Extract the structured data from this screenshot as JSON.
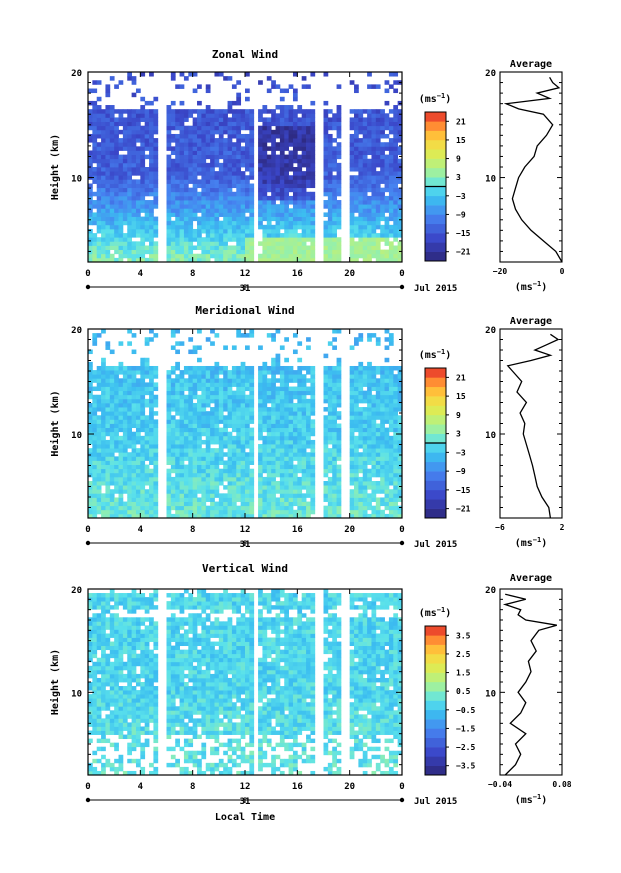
{
  "chart_data": [
    {
      "type": "heatmap",
      "title": "Zonal Wind",
      "xlabel": "",
      "ylabel": "Height (km)",
      "xlim": [
        0,
        24
      ],
      "ylim": [
        2,
        20
      ],
      "xticks": [
        "0",
        "4",
        "8",
        "12",
        "16",
        "20",
        "0"
      ],
      "yticks": [
        "10",
        "20"
      ],
      "day_label": "31",
      "month_label": "Jul 2015",
      "colorbar": {
        "unit": "(ms",
        "unit_sup": "−1",
        "unit_close": ")",
        "ticks": [
          "21",
          "15",
          "9",
          "3",
          "−3",
          "−9",
          "−15",
          "−21"
        ],
        "zero_line": true
      },
      "field": {
        "base": -12,
        "surface": 3,
        "top_shift": -4,
        "gaps": [
          5.6,
          12.8,
          17.6,
          19.6
        ],
        "ceiling": 16.5
      },
      "profile": {
        "title": "Average",
        "xlim": [
          -20,
          0
        ],
        "xticks": [
          "−20",
          "0"
        ],
        "xlabel": "(ms",
        "xlabel_sup": "−1",
        "xlabel_close": ")",
        "yticks": [
          "10",
          "20"
        ],
        "heights": [
          2,
          3,
          4,
          5,
          6,
          7,
          8,
          9,
          10,
          11,
          12,
          13,
          14,
          15,
          16,
          16.5,
          17,
          17.5,
          18,
          18.5,
          19,
          19.5
        ],
        "values": [
          0,
          -2,
          -6,
          -10,
          -13,
          -15,
          -16,
          -15,
          -14,
          -12,
          -9,
          -8,
          -5,
          -3,
          -6,
          -14,
          -18,
          -4,
          -8,
          -1,
          -3,
          -4
        ]
      }
    },
    {
      "type": "heatmap",
      "title": "Meridional Wind",
      "xlabel": "",
      "ylabel": "Height (km)",
      "xlim": [
        0,
        24
      ],
      "ylim": [
        2,
        20
      ],
      "xticks": [
        "0",
        "4",
        "8",
        "12",
        "16",
        "20",
        "0"
      ],
      "yticks": [
        "10",
        "20"
      ],
      "day_label": "31",
      "month_label": "Jul 2015",
      "colorbar": {
        "unit": "(ms",
        "unit_sup": "−1",
        "unit_close": ")",
        "ticks": [
          "21",
          "15",
          "9",
          "3",
          "−3",
          "−9",
          "−15",
          "−21"
        ],
        "zero_line": true
      },
      "field": {
        "base": -2,
        "surface": 1,
        "top_shift": -3,
        "gaps": [
          5.6,
          12.8,
          17.6,
          19.6
        ],
        "ceiling": 16.5
      },
      "profile": {
        "title": "Average",
        "xlim": [
          -6,
          2
        ],
        "xticks": [
          "−6",
          "2"
        ],
        "xlabel": "(ms",
        "xlabel_sup": "−1",
        "xlabel_close": ")",
        "yticks": [
          "10",
          "20"
        ],
        "heights": [
          2,
          3,
          4,
          5,
          6,
          7,
          8,
          9,
          10,
          11,
          12,
          13,
          14,
          15,
          16,
          16.5,
          17,
          17.5,
          18,
          18.5,
          19,
          19.5
        ],
        "values": [
          0.5,
          0.3,
          -0.6,
          -1.2,
          -1.5,
          -1.8,
          -2.2,
          -2.6,
          -3.0,
          -2.8,
          -3.4,
          -2.6,
          -3.8,
          -3.2,
          -4.4,
          -5.0,
          -2.0,
          0.5,
          -1.5,
          0.0,
          1.5,
          0.5
        ]
      }
    },
    {
      "type": "heatmap",
      "title": "Vertical Wind",
      "xlabel": "Local Time",
      "ylabel": "Height (km)",
      "xlim": [
        0,
        24
      ],
      "ylim": [
        2,
        20
      ],
      "xticks": [
        "0",
        "4",
        "8",
        "12",
        "16",
        "20",
        "0"
      ],
      "yticks": [
        "10",
        "20"
      ],
      "day_label": "31",
      "month_label": "Jul 2015",
      "colorbar": {
        "unit": "(ms",
        "unit_sup": "−1",
        "unit_close": ")",
        "ticks": [
          "3.5",
          "2.5",
          "1.5",
          "0.5",
          "−0.5",
          "−1.5",
          "−2.5",
          "−3.5"
        ],
        "zero_line": false
      },
      "field": {
        "base": -0.2,
        "surface": 0.1,
        "top_shift": 0,
        "gaps": [
          5.6,
          12.8,
          17.6,
          19.6
        ],
        "ceiling": 19.6
      },
      "profile": {
        "title": "Average",
        "xlim": [
          -0.04,
          0.08
        ],
        "xticks": [
          "−0.04",
          "0.08"
        ],
        "xlabel": "(ms",
        "xlabel_sup": "−1",
        "xlabel_close": ")",
        "yticks": [
          "10",
          "20"
        ],
        "heights": [
          2,
          3,
          4,
          5,
          6,
          7,
          8,
          9,
          10,
          11,
          12,
          13,
          14,
          15,
          16,
          16.5,
          17,
          17.5,
          18,
          18.5,
          19,
          19.5
        ],
        "values": [
          -0.03,
          -0.01,
          0.0,
          -0.01,
          0.01,
          -0.02,
          0.0,
          0.01,
          -0.005,
          0.01,
          0.02,
          0.015,
          0.03,
          0.02,
          0.035,
          0.07,
          0.01,
          -0.005,
          0.0,
          -0.03,
          0.01,
          -0.03
        ]
      }
    }
  ]
}
